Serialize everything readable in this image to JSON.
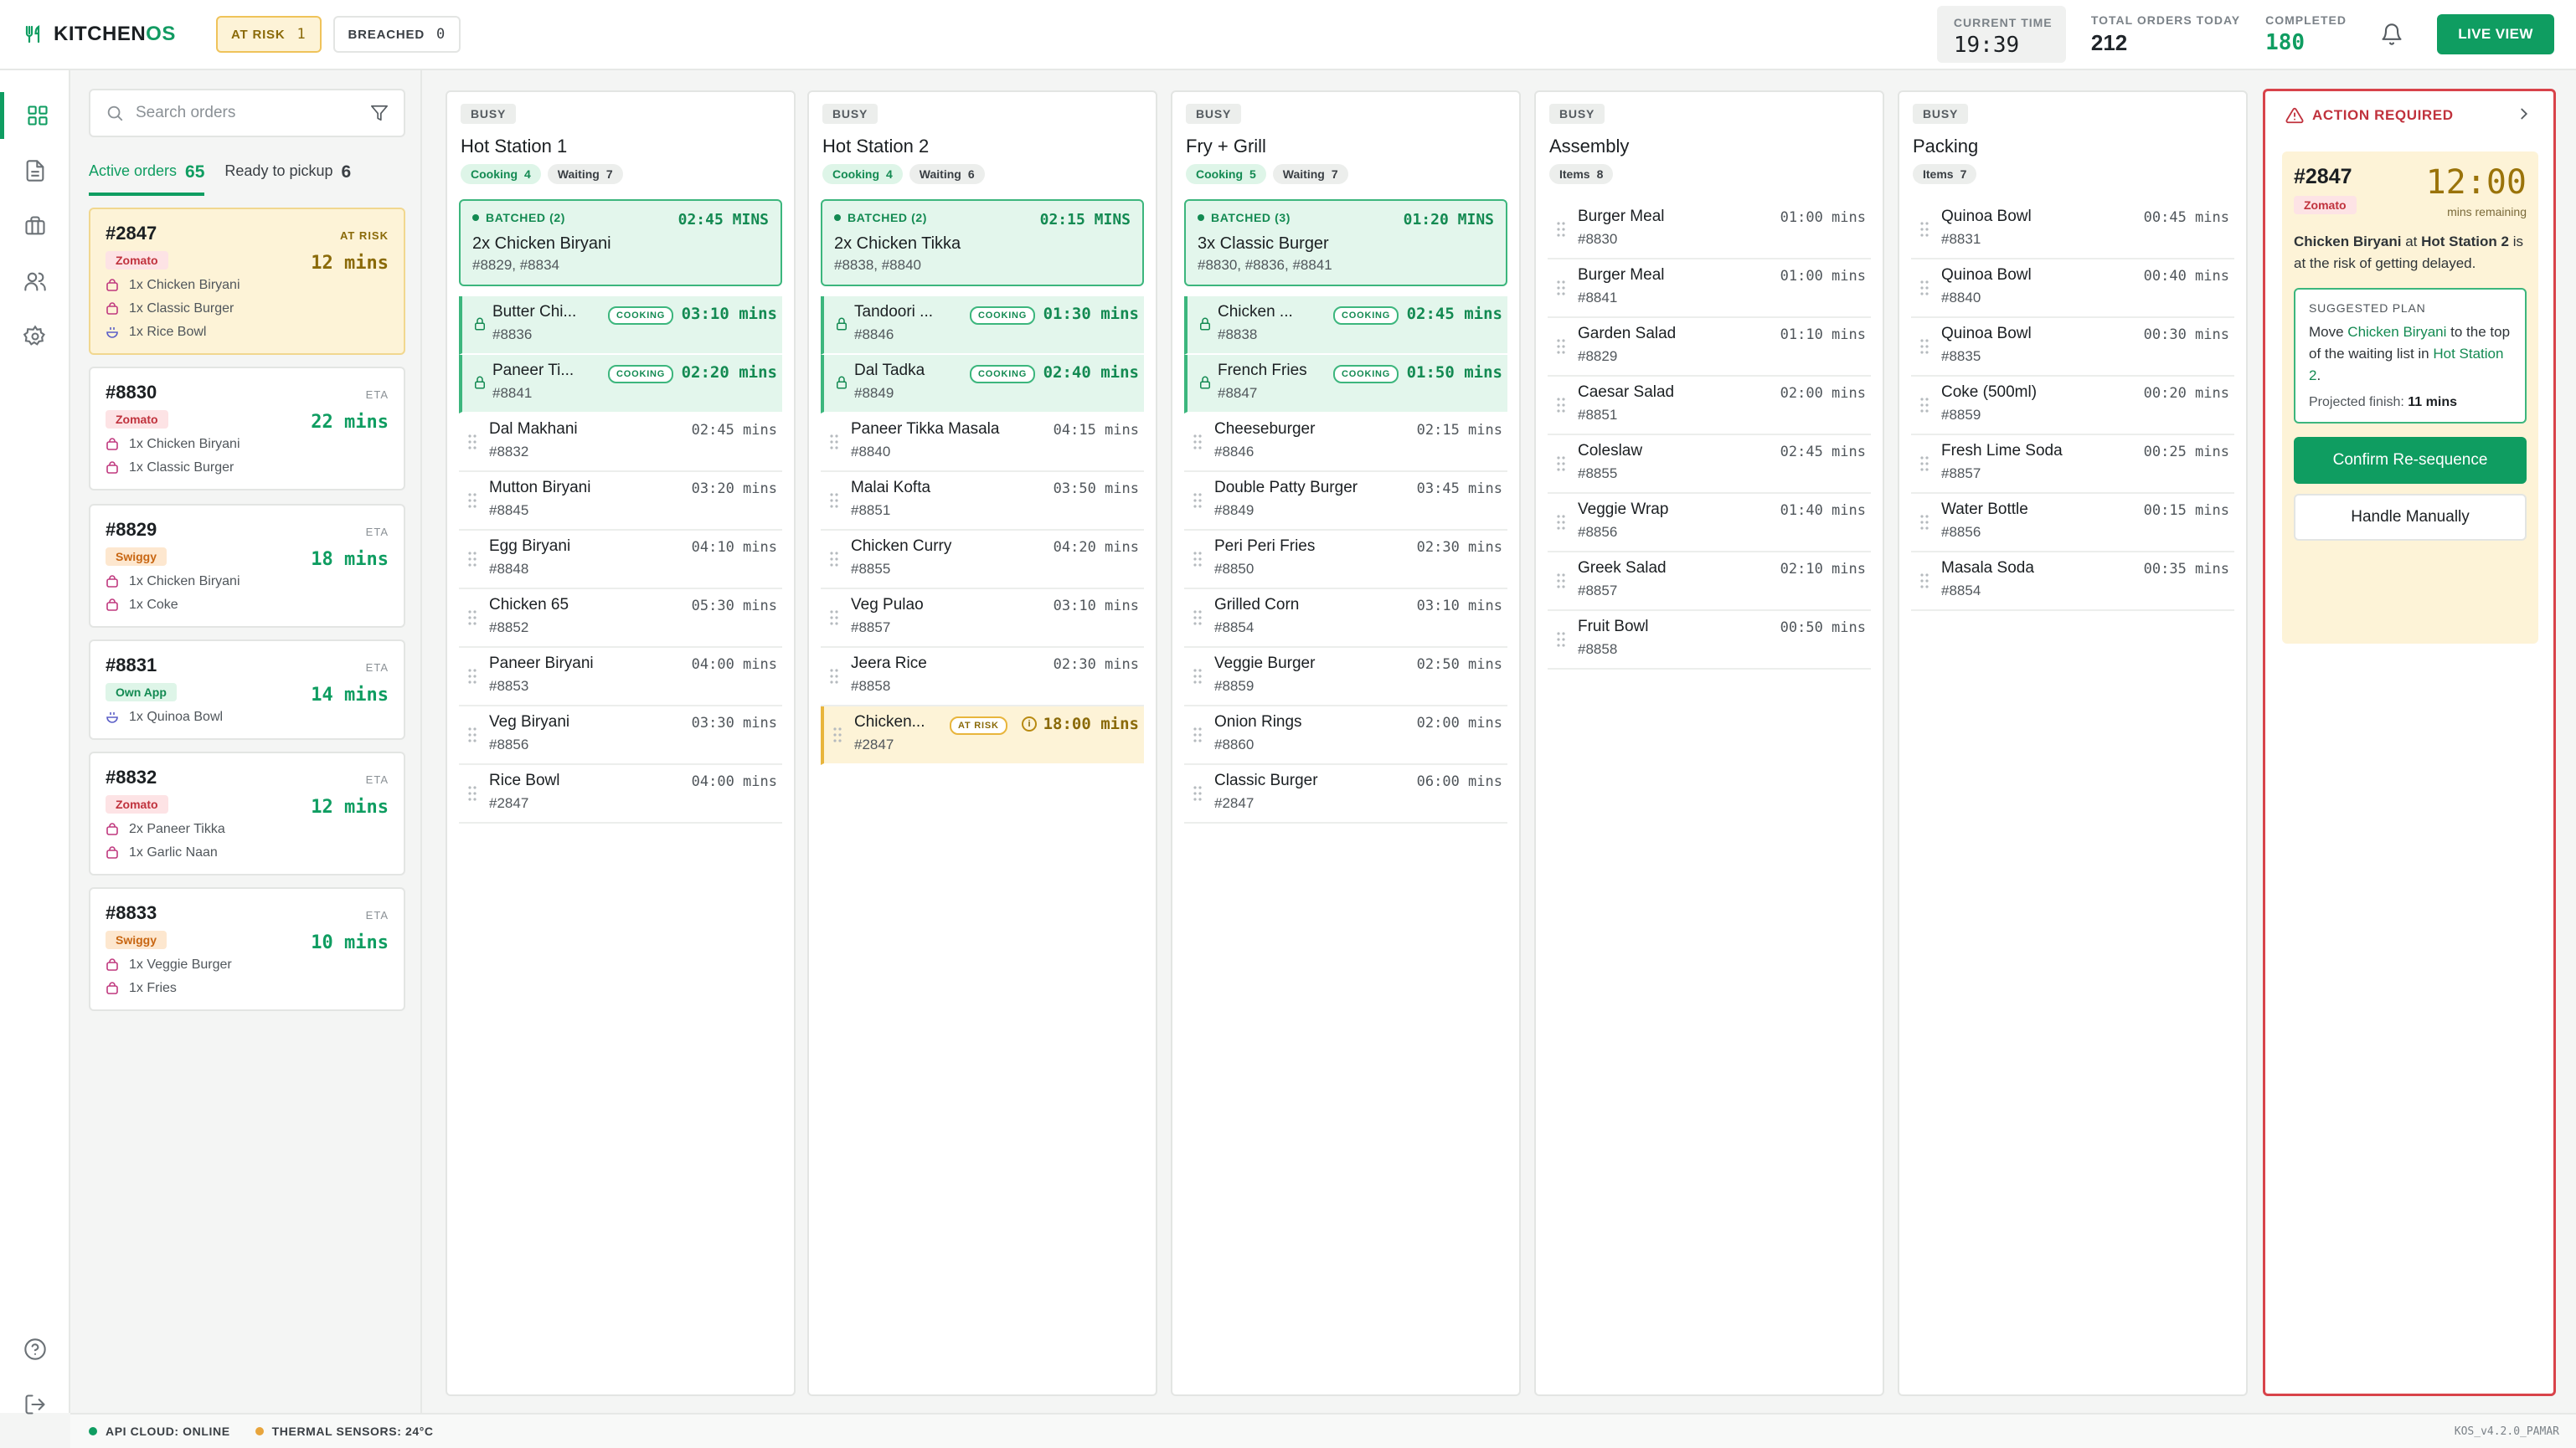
{
  "app": {
    "name_main": "KITCHEN",
    "name_accent": "OS"
  },
  "header": {
    "at_risk": {
      "label": "AT RISK",
      "count": "1"
    },
    "breached": {
      "label": "BREACHED",
      "count": "0"
    },
    "current_time": {
      "label": "CURRENT TIME",
      "value": "19:39"
    },
    "total_orders": {
      "label": "TOTAL ORDERS TODAY",
      "value": "212"
    },
    "completed": {
      "label": "COMPLETED",
      "value": "180"
    },
    "live_view": "LIVE VIEW"
  },
  "orders_panel": {
    "search_placeholder": "Search orders",
    "tabs": [
      {
        "label": "Active orders",
        "count": "65"
      },
      {
        "label": "Ready to pickup",
        "count": "6"
      }
    ],
    "orders": [
      {
        "id": "#2847",
        "source": "Zomato",
        "eta_label": "AT RISK",
        "eta": "12 mins",
        "items": [
          "1x Chicken Biryani",
          "1x Classic Burger",
          "1x Rice Bowl"
        ]
      },
      {
        "id": "#8830",
        "source": "Zomato",
        "eta_label": "ETA",
        "eta": "22 mins",
        "items": [
          "1x Chicken Biryani",
          "1x Classic Burger"
        ]
      },
      {
        "id": "#8829",
        "source": "Swiggy",
        "eta_label": "ETA",
        "eta": "18 mins",
        "items": [
          "1x Chicken Biryani",
          "1x Coke"
        ]
      },
      {
        "id": "#8831",
        "source": "Own App",
        "eta_label": "ETA",
        "eta": "14 mins",
        "items": [
          "1x Quinoa Bowl"
        ]
      },
      {
        "id": "#8832",
        "source": "Zomato",
        "eta_label": "ETA",
        "eta": "12 mins",
        "items": [
          "2x Paneer Tikka",
          "1x Garlic Naan"
        ]
      },
      {
        "id": "#8833",
        "source": "Swiggy",
        "eta_label": "ETA",
        "eta": "10 mins",
        "items": [
          "1x Veggie Burger",
          "1x Fries"
        ]
      }
    ]
  },
  "stations": [
    {
      "status": "BUSY",
      "title": "Hot Station 1",
      "badges": [
        {
          "label": "Cooking",
          "count": "4"
        },
        {
          "label": "Waiting",
          "count": "7"
        }
      ],
      "batch": {
        "label": "BATCHED (2)",
        "time": "02:45 MINS",
        "name": "2x Chicken Biryani",
        "orders": "#8829, #8834"
      },
      "rows": [
        {
          "name": "Butter Chi...",
          "order": "#8836",
          "time": "03:10 mins",
          "state": "COOKING"
        },
        {
          "name": "Paneer Ti...",
          "order": "#8841",
          "time": "02:20 mins",
          "state": "COOKING"
        },
        {
          "name": "Dal Makhani",
          "order": "#8832",
          "time": "02:45 mins"
        },
        {
          "name": "Mutton Biryani",
          "order": "#8845",
          "time": "03:20 mins"
        },
        {
          "name": "Egg Biryani",
          "order": "#8848",
          "time": "04:10 mins"
        },
        {
          "name": "Chicken 65",
          "order": "#8852",
          "time": "05:30 mins"
        },
        {
          "name": "Paneer Biryani",
          "order": "#8853",
          "time": "04:00 mins"
        },
        {
          "name": "Veg Biryani",
          "order": "#8856",
          "time": "03:30 mins"
        },
        {
          "name": "Rice Bowl",
          "order": "#2847",
          "time": "04:00 mins"
        }
      ]
    },
    {
      "status": "BUSY",
      "title": "Hot Station 2",
      "badges": [
        {
          "label": "Cooking",
          "count": "4"
        },
        {
          "label": "Waiting",
          "count": "6"
        }
      ],
      "batch": {
        "label": "BATCHED (2)",
        "time": "02:15 MINS",
        "name": "2x Chicken Tikka",
        "orders": "#8838, #8840"
      },
      "rows": [
        {
          "name": "Tandoori ...",
          "order": "#8846",
          "time": "01:30 mins",
          "state": "COOKING"
        },
        {
          "name": "Dal Tadka",
          "order": "#8849",
          "time": "02:40 mins",
          "state": "COOKING"
        },
        {
          "name": "Paneer Tikka Masala",
          "order": "#8840",
          "time": "04:15 mins"
        },
        {
          "name": "Malai Kofta",
          "order": "#8851",
          "time": "03:50 mins"
        },
        {
          "name": "Chicken Curry",
          "order": "#8855",
          "time": "04:20 mins"
        },
        {
          "name": "Veg Pulao",
          "order": "#8857",
          "time": "03:10 mins"
        },
        {
          "name": "Jeera Rice",
          "order": "#8858",
          "time": "02:30 mins"
        },
        {
          "name": "Chicken...",
          "order": "#2847",
          "time": "18:00 mins",
          "state": "AT RISK"
        }
      ]
    },
    {
      "status": "BUSY",
      "title": "Fry + Grill",
      "badges": [
        {
          "label": "Cooking",
          "count": "5"
        },
        {
          "label": "Waiting",
          "count": "7"
        }
      ],
      "batch": {
        "label": "BATCHED (3)",
        "time": "01:20 MINS",
        "name": "3x Classic Burger",
        "orders": "#8830, #8836, #8841"
      },
      "rows": [
        {
          "name": "Chicken ...",
          "order": "#8838",
          "time": "02:45 mins",
          "state": "COOKING"
        },
        {
          "name": "French Fries",
          "order": "#8847",
          "time": "01:50 mins",
          "state": "COOKING"
        },
        {
          "name": "Cheeseburger",
          "order": "#8846",
          "time": "02:15 mins"
        },
        {
          "name": "Double Patty Burger",
          "order": "#8849",
          "time": "03:45 mins"
        },
        {
          "name": "Peri Peri Fries",
          "order": "#8850",
          "time": "02:30 mins"
        },
        {
          "name": "Grilled Corn",
          "order": "#8854",
          "time": "03:10 mins"
        },
        {
          "name": "Veggie Burger",
          "order": "#8859",
          "time": "02:50 mins"
        },
        {
          "name": "Onion Rings",
          "order": "#8860",
          "time": "02:00 mins"
        },
        {
          "name": "Classic Burger",
          "order": "#2847",
          "time": "06:00 mins"
        }
      ]
    },
    {
      "status": "BUSY",
      "title": "Assembly",
      "badges": [
        {
          "label": "Items",
          "count": "8"
        }
      ],
      "rows": [
        {
          "name": "Burger Meal",
          "order": "#8830",
          "time": "01:00 mins"
        },
        {
          "name": "Burger Meal",
          "order": "#8841",
          "time": "01:00 mins"
        },
        {
          "name": "Garden Salad",
          "order": "#8829",
          "time": "01:10 mins"
        },
        {
          "name": "Caesar Salad",
          "order": "#8851",
          "time": "02:00 mins"
        },
        {
          "name": "Coleslaw",
          "order": "#8855",
          "time": "02:45 mins"
        },
        {
          "name": "Veggie Wrap",
          "order": "#8856",
          "time": "01:40 mins"
        },
        {
          "name": "Greek Salad",
          "order": "#8857",
          "time": "02:10 mins"
        },
        {
          "name": "Fruit Bowl",
          "order": "#8858",
          "time": "00:50 mins"
        }
      ]
    },
    {
      "status": "BUSY",
      "title": "Packing",
      "badges": [
        {
          "label": "Items",
          "count": "7"
        }
      ],
      "rows": [
        {
          "name": "Quinoa Bowl",
          "order": "#8831",
          "time": "00:45 mins"
        },
        {
          "name": "Quinoa Bowl",
          "order": "#8840",
          "time": "00:40 mins"
        },
        {
          "name": "Quinoa Bowl",
          "order": "#8835",
          "time": "00:30 mins"
        },
        {
          "name": "Coke (500ml)",
          "order": "#8859",
          "time": "00:20 mins"
        },
        {
          "name": "Fresh Lime Soda",
          "order": "#8857",
          "time": "00:25 mins"
        },
        {
          "name": "Water Bottle",
          "order": "#8856",
          "time": "00:15 mins"
        },
        {
          "name": "Masala Soda",
          "order": "#8854",
          "time": "00:35 mins"
        }
      ]
    }
  ],
  "action": {
    "title": "ACTION REQUIRED",
    "order_id": "#2847",
    "source": "Zomato",
    "timer": "12:00",
    "timer_label": "mins remaining",
    "desc_item": "Chicken Biryani",
    "desc_at": " at ",
    "desc_station": "Hot Station 2",
    "desc_rest": " is at the risk of getting delayed.",
    "plan_label": "SUGGESTED PLAN",
    "plan_move": "Move ",
    "plan_item": "Chicken Biryani",
    "plan_mid": " to the top of the waiting list in ",
    "plan_station": "Hot Station 2",
    "plan_end": ".",
    "projected_label": "Projected finish: ",
    "projected_value": "11 mins",
    "confirm": "Confirm Re-sequence",
    "manual": "Handle Manually"
  },
  "footer": {
    "api": "API CLOUD: ONLINE",
    "thermal": "THERMAL SENSORS: 24°C",
    "version": "KOS_v4.2.0_PAMAR"
  },
  "colors": {
    "accent": "#0f9d61",
    "risk": "#e8b53c",
    "danger": "#d8434a"
  }
}
